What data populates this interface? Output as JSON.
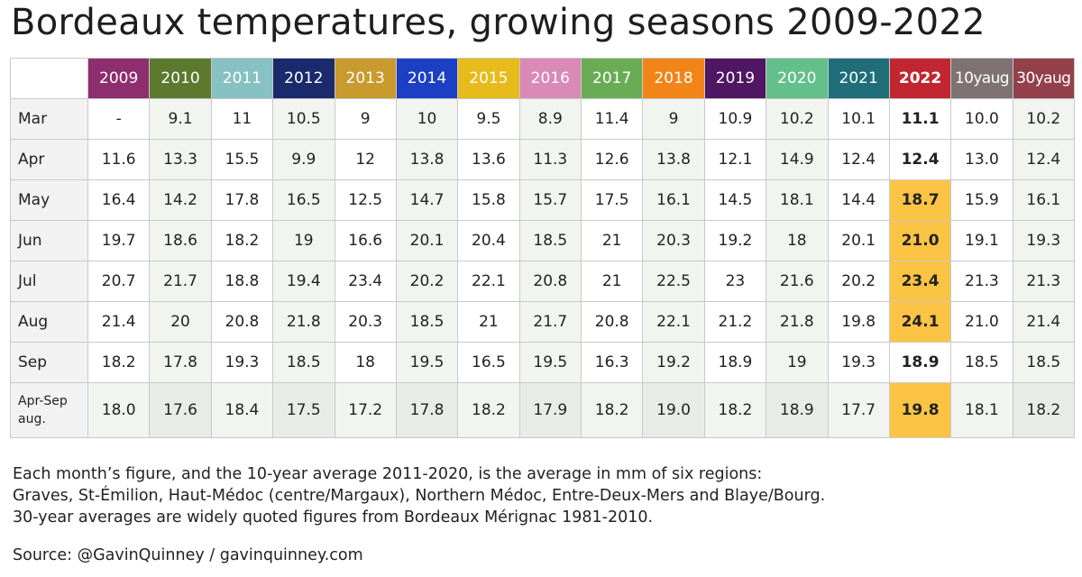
{
  "title": "Bordeaux temperatures, growing seasons 2009-2022",
  "notes": [
    "Each month’s figure, and the 10-year average 2011-2020, is the average in mm of six regions:",
    "Graves, St-Émilion, Haut-Médoc (centre/Margaux), Northern Médoc, Entre-Deux-Mers and Blaye/Bourg.",
    "30-year averages are widely quoted figures from Bordeaux Mérignac 1981-2010."
  ],
  "source": "Source: @GavinQuinney / gavinquinney.com",
  "colors": {
    "2009": "#8e2e6e",
    "2010": "#5c7a2e",
    "2011": "#87c1c3",
    "2012": "#1a2a6c",
    "2013": "#c99a2e",
    "2014": "#1c3fc4",
    "2015": "#e6bb1b",
    "2016": "#d98ab7",
    "2017": "#6aac56",
    "2018": "#f28418",
    "2019": "#4f1763",
    "2020": "#63c08a",
    "2021": "#1f6e7a",
    "2022": "#c22630",
    "10yaug": "#7f7272",
    "30yaug": "#93404a",
    "highlight": "#fcc445"
  },
  "chart_data": {
    "type": "table",
    "title": "Bordeaux temperatures, growing seasons 2009-2022",
    "columns": [
      "2009",
      "2010",
      "2011",
      "2012",
      "2013",
      "2014",
      "2015",
      "2016",
      "2017",
      "2018",
      "2019",
      "2020",
      "2021",
      "2022",
      "10yaug",
      "30yaug"
    ],
    "rows": [
      {
        "label": "Mar",
        "values": [
          "-",
          "9.1",
          "11",
          "10.5",
          "9",
          "10",
          "9.5",
          "8.9",
          "11.4",
          "9",
          "10.9",
          "10.2",
          "10.1",
          "11.1",
          "10.0",
          "10.2"
        ]
      },
      {
        "label": "Apr",
        "values": [
          "11.6",
          "13.3",
          "15.5",
          "9.9",
          "12",
          "13.8",
          "13.6",
          "11.3",
          "12.6",
          "13.8",
          "12.1",
          "14.9",
          "12.4",
          "12.4",
          "13.0",
          "12.4"
        ]
      },
      {
        "label": "May",
        "values": [
          "16.4",
          "14.2",
          "17.8",
          "16.5",
          "12.5",
          "14.7",
          "15.8",
          "15.7",
          "17.5",
          "16.1",
          "14.5",
          "18.1",
          "14.4",
          "18.7",
          "15.9",
          "16.1"
        ]
      },
      {
        "label": "Jun",
        "values": [
          "19.7",
          "18.6",
          "18.2",
          "19",
          "16.6",
          "20.1",
          "20.4",
          "18.5",
          "21",
          "20.3",
          "19.2",
          "18",
          "20.1",
          "21.0",
          "19.1",
          "19.3"
        ]
      },
      {
        "label": "Jul",
        "values": [
          "20.7",
          "21.7",
          "18.8",
          "19.4",
          "23.4",
          "20.2",
          "22.1",
          "20.8",
          "21",
          "22.5",
          "23",
          "21.6",
          "20.2",
          "23.4",
          "21.3",
          "21.3"
        ]
      },
      {
        "label": "Aug",
        "values": [
          "21.4",
          "20",
          "20.8",
          "21.8",
          "20.3",
          "18.5",
          "21",
          "21.7",
          "20.8",
          "22.1",
          "21.2",
          "21.8",
          "19.8",
          "24.1",
          "21.0",
          "21.4"
        ]
      },
      {
        "label": "Sep",
        "values": [
          "18.2",
          "17.8",
          "19.3",
          "18.5",
          "18",
          "19.5",
          "16.5",
          "19.5",
          "16.3",
          "19.2",
          "18.9",
          "19",
          "19.3",
          "18.9",
          "18.5",
          "18.5"
        ]
      }
    ],
    "average_row": {
      "label_line1": "Apr-Sep",
      "label_line2": "aug.",
      "values": [
        "18.0",
        "17.6",
        "18.4",
        "17.5",
        "17.2",
        "17.8",
        "18.2",
        "17.9",
        "18.2",
        "19.0",
        "18.2",
        "18.9",
        "17.7",
        "19.8",
        "18.1",
        "18.2"
      ]
    },
    "highlighted_cells": [
      {
        "row": "May",
        "column": "2022"
      },
      {
        "row": "Jun",
        "column": "2022"
      },
      {
        "row": "Jul",
        "column": "2022"
      },
      {
        "row": "Aug",
        "column": "2022"
      },
      {
        "row": "Apr-Sep aug.",
        "column": "2022"
      }
    ]
  }
}
